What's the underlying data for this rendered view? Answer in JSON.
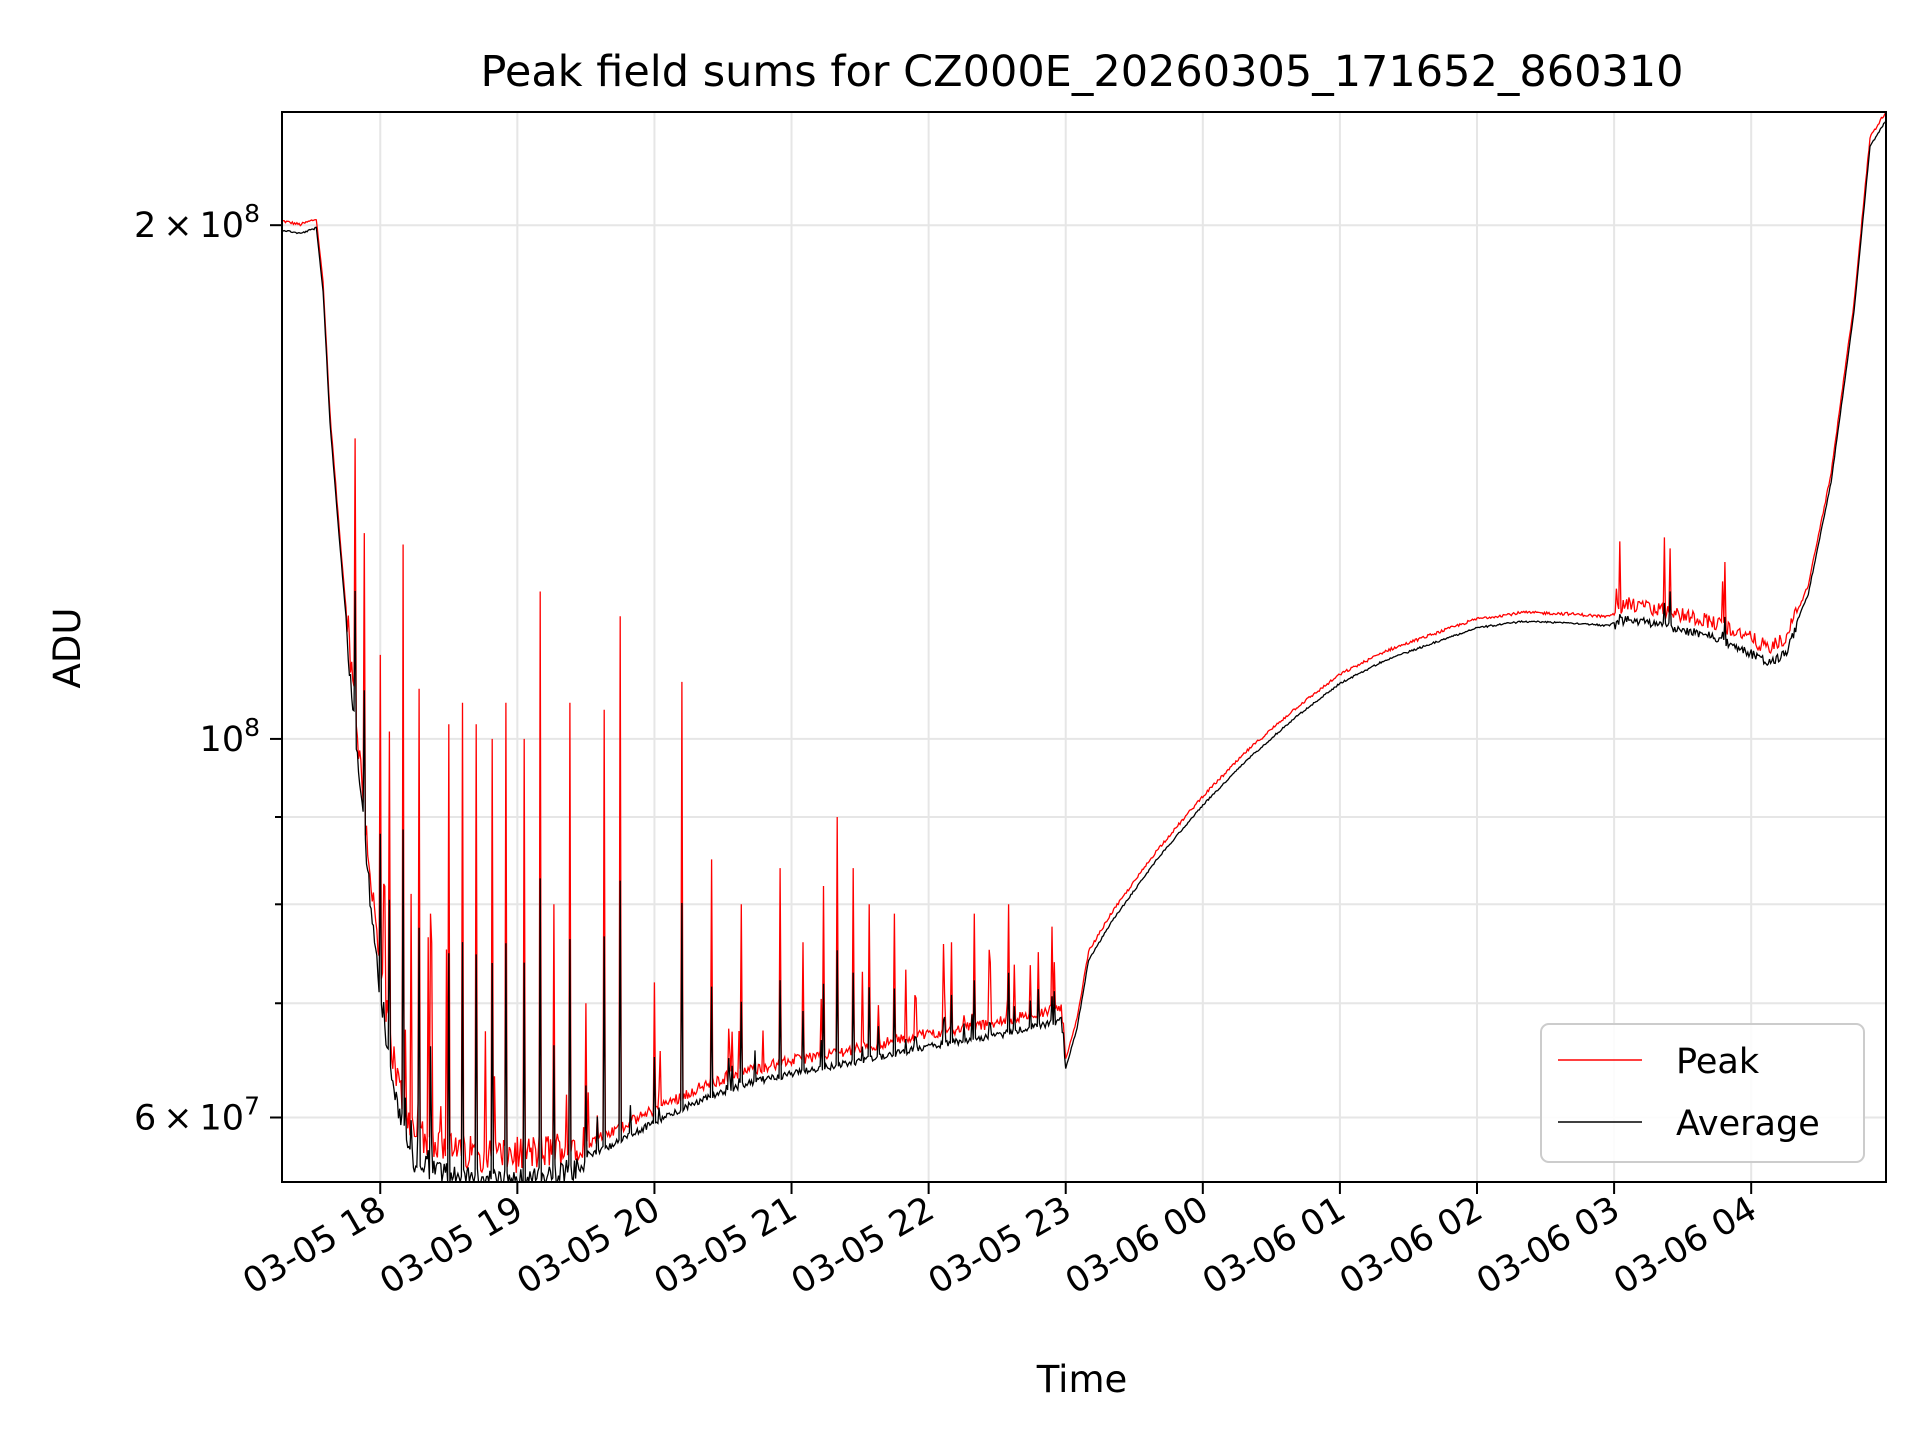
{
  "chart_data": {
    "type": "line",
    "title": "Peak field sums for CZ000E_20260305_171652_860310",
    "xlabel": "Time",
    "ylabel": "ADU",
    "yscale": "log",
    "ylim": [
      55000000,
      233000000
    ],
    "xlim": [
      "2026-03-05 17:17",
      "2026-03-06 04:59"
    ],
    "grid": true,
    "legend_position": "lower right",
    "x_ticks": [
      {
        "t": "2026-03-05 18:00",
        "label": "03-05 18"
      },
      {
        "t": "2026-03-05 19:00",
        "label": "03-05 19"
      },
      {
        "t": "2026-03-05 20:00",
        "label": "03-05 20"
      },
      {
        "t": "2026-03-05 21:00",
        "label": "03-05 21"
      },
      {
        "t": "2026-03-05 22:00",
        "label": "03-05 22"
      },
      {
        "t": "2026-03-05 23:00",
        "label": "03-05 23"
      },
      {
        "t": "2026-03-06 00:00",
        "label": "03-06 00"
      },
      {
        "t": "2026-03-06 01:00",
        "label": "03-06 01"
      },
      {
        "t": "2026-03-06 02:00",
        "label": "03-06 02"
      },
      {
        "t": "2026-03-06 03:00",
        "label": "03-06 03"
      },
      {
        "t": "2026-03-06 04:00",
        "label": "03-06 04"
      }
    ],
    "y_major_ticks": [
      {
        "value": 60000000,
        "mant": "6",
        "exp": "7"
      },
      {
        "value": 100000000,
        "mant": "",
        "exp": "8"
      },
      {
        "value": 200000000,
        "mant": "2",
        "exp": "8"
      }
    ],
    "y_minor_ticks": [
      70000000,
      80000000,
      90000000
    ],
    "series": [
      {
        "name": "Peak",
        "color": "#ff0000",
        "baseline": [
          [
            "2026-03-05 17:17",
            201000000
          ],
          [
            "2026-03-05 17:25",
            200000000
          ],
          [
            "2026-03-05 17:32",
            201500000
          ],
          [
            "2026-03-05 17:35",
            185000000
          ],
          [
            "2026-03-05 17:38",
            155000000
          ],
          [
            "2026-03-05 17:42",
            133000000
          ],
          [
            "2026-03-05 17:47",
            111000000
          ],
          [
            "2026-03-05 17:53",
            90000000
          ],
          [
            "2026-03-05 18:00",
            72000000
          ],
          [
            "2026-03-05 18:08",
            62000000
          ],
          [
            "2026-03-05 18:15",
            58000000
          ],
          [
            "2026-03-05 18:30",
            56800000
          ],
          [
            "2026-03-05 18:50",
            56500000
          ],
          [
            "2026-03-05 19:00",
            56500000
          ],
          [
            "2026-03-05 19:20",
            57000000
          ],
          [
            "2026-03-05 19:40",
            58500000
          ],
          [
            "2026-03-05 20:00",
            60500000
          ],
          [
            "2026-03-05 20:20",
            62300000
          ],
          [
            "2026-03-05 20:40",
            63700000
          ],
          [
            "2026-03-05 21:00",
            64600000
          ],
          [
            "2026-03-05 21:30",
            65700000
          ],
          [
            "2026-03-05 22:00",
            67000000
          ],
          [
            "2026-03-05 22:30",
            68000000
          ],
          [
            "2026-03-05 22:58",
            69400000
          ],
          [
            "2026-03-05 23:00",
            64800000
          ],
          [
            "2026-03-05 23:05",
            68500000
          ],
          [
            "2026-03-05 23:10",
            75000000
          ],
          [
            "2026-03-05 23:20",
            79000000
          ],
          [
            "2026-03-05 23:40",
            86000000
          ],
          [
            "2026-03-06 00:00",
            92500000
          ],
          [
            "2026-03-06 00:20",
            98500000
          ],
          [
            "2026-03-06 00:40",
            104000000
          ],
          [
            "2026-03-06 01:00",
            109000000
          ],
          [
            "2026-03-06 01:20",
            112500000
          ],
          [
            "2026-03-06 01:40",
            115000000
          ],
          [
            "2026-03-06 02:00",
            117500000
          ],
          [
            "2026-03-06 02:20",
            118500000
          ],
          [
            "2026-03-06 02:40",
            118300000
          ],
          [
            "2026-03-06 02:58",
            117800000
          ],
          [
            "2026-03-06 03:05",
            119500000
          ],
          [
            "2026-03-06 03:20",
            118500000
          ],
          [
            "2026-03-06 03:40",
            117000000
          ],
          [
            "2026-03-06 03:55",
            115000000
          ],
          [
            "2026-03-06 04:08",
            112500000
          ],
          [
            "2026-03-06 04:15",
            114000000
          ],
          [
            "2026-03-06 04:25",
            123000000
          ],
          [
            "2026-03-06 04:35",
            143000000
          ],
          [
            "2026-03-06 04:45",
            180000000
          ],
          [
            "2026-03-06 04:52",
            225000000
          ],
          [
            "2026-03-06 04:59",
            233000000
          ]
        ],
        "spikes": [
          [
            "2026-03-05 17:49",
            150000000
          ],
          [
            "2026-03-05 17:53",
            132000000
          ],
          [
            "2026-03-05 18:00",
            112000000
          ],
          [
            "2026-03-05 18:04",
            101000000
          ],
          [
            "2026-03-05 18:10",
            130000000
          ],
          [
            "2026-03-05 18:17",
            107000000
          ],
          [
            "2026-03-05 18:22",
            79000000
          ],
          [
            "2026-03-05 18:30",
            102000000
          ],
          [
            "2026-03-05 18:36",
            105000000
          ],
          [
            "2026-03-05 18:42",
            102000000
          ],
          [
            "2026-03-05 18:49",
            100000000
          ],
          [
            "2026-03-05 18:55",
            105000000
          ],
          [
            "2026-03-05 19:03",
            100000000
          ],
          [
            "2026-03-05 19:10",
            122000000
          ],
          [
            "2026-03-05 19:16",
            80000000
          ],
          [
            "2026-03-05 19:23",
            105000000
          ],
          [
            "2026-03-05 19:30",
            70000000
          ],
          [
            "2026-03-05 19:38",
            104000000
          ],
          [
            "2026-03-05 19:45",
            118000000
          ],
          [
            "2026-03-05 20:00",
            72000000
          ],
          [
            "2026-03-05 20:12",
            108000000
          ],
          [
            "2026-03-05 20:25",
            85000000
          ],
          [
            "2026-03-05 20:38",
            80000000
          ],
          [
            "2026-03-05 20:55",
            84000000
          ],
          [
            "2026-03-05 21:05",
            76000000
          ],
          [
            "2026-03-05 21:14",
            82000000
          ],
          [
            "2026-03-05 21:20",
            90000000
          ],
          [
            "2026-03-05 21:27",
            84000000
          ],
          [
            "2026-03-05 21:34",
            80000000
          ],
          [
            "2026-03-05 21:45",
            79000000
          ],
          [
            "2026-03-05 22:10",
            76000000
          ],
          [
            "2026-03-05 22:20",
            79000000
          ],
          [
            "2026-03-05 22:35",
            80000000
          ],
          [
            "2026-03-05 22:48",
            75000000
          ],
          [
            "2026-03-05 22:55",
            74000000
          ]
        ]
      },
      {
        "name": "Average",
        "color": "#000000",
        "note_level": "average follows peak baseline, slightly lower, with shorter spikes"
      }
    ]
  }
}
